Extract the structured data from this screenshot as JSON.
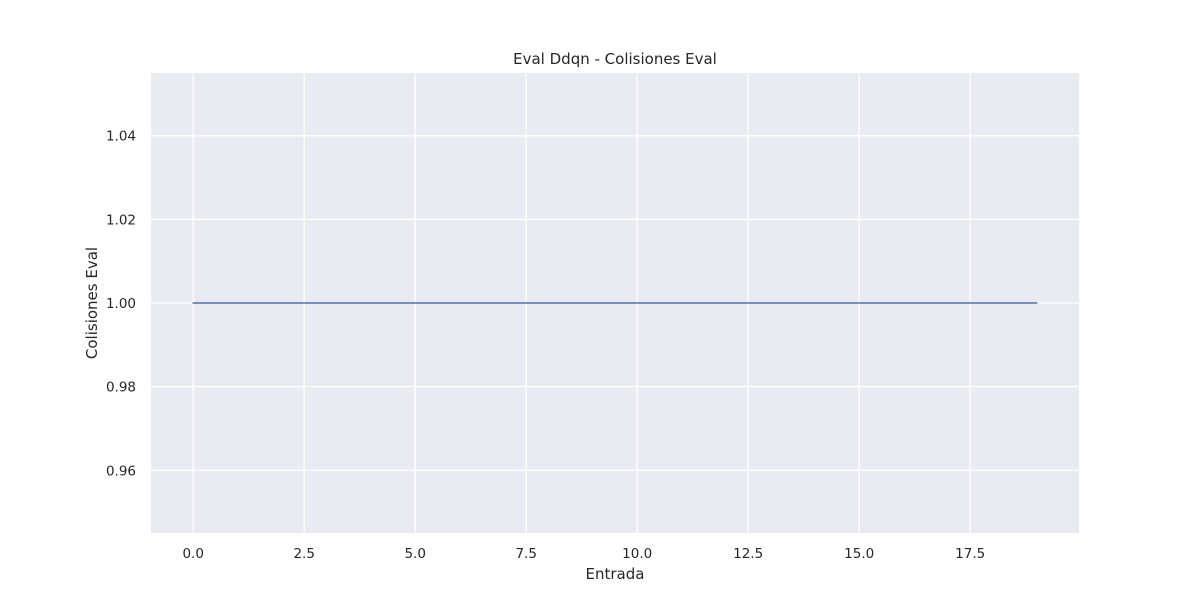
{
  "chart_data": {
    "type": "line",
    "title": "Eval Ddqn - Colisiones Eval",
    "xlabel": "Entrada",
    "ylabel": "Colisiones Eval",
    "x": [
      0,
      1,
      2,
      3,
      4,
      5,
      6,
      7,
      8,
      9,
      10,
      11,
      12,
      13,
      14,
      15,
      16,
      17,
      18,
      19
    ],
    "series": [
      {
        "values": [
          1,
          1,
          1,
          1,
          1,
          1,
          1,
          1,
          1,
          1,
          1,
          1,
          1,
          1,
          1,
          1,
          1,
          1,
          1,
          1
        ]
      }
    ],
    "xlim": [
      -0.95,
      19.95
    ],
    "ylim": [
      0.945,
      1.055
    ],
    "x_ticks": [
      0.0,
      2.5,
      5.0,
      7.5,
      10.0,
      12.5,
      15.0,
      17.5
    ],
    "x_tick_labels": [
      "0.0",
      "2.5",
      "5.0",
      "7.5",
      "10.0",
      "12.5",
      "15.0",
      "17.5"
    ],
    "y_ticks": [
      0.96,
      0.98,
      1.0,
      1.02,
      1.04
    ],
    "y_tick_labels": [
      "0.96",
      "0.98",
      "1.00",
      "1.02",
      "1.04"
    ],
    "grid": true,
    "colors": {
      "plot_background": "#eaeaf2",
      "grid": "#ffffff",
      "line": "#4c72b0",
      "text": "#262626"
    }
  }
}
